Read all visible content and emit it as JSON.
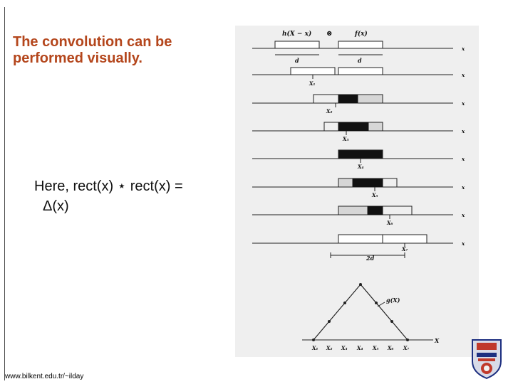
{
  "slide": {
    "title_lines": [
      "The convolution can be",
      "performed visually."
    ],
    "equation_line1": "Here, rect(x) ⋆ rect(x) =",
    "equation_line2": "Δ(x)",
    "footer_url": "www.bilkent.edu.tr/~ilday"
  },
  "figure": {
    "header_h": "h(X − x)",
    "header_op": "⊗",
    "header_f": "f(x)",
    "axis_label": "x",
    "axis_label_bottom": "X",
    "width_label": "d",
    "overlap_width_label": "2d",
    "result_label": "g(X)",
    "shift_labels": [
      "X₁",
      "X₂",
      "X₃",
      "X₄",
      "X₅",
      "X₆",
      "X₇"
    ],
    "bottom_tick_labels": [
      "X₁",
      "X₂",
      "X₃",
      "X₄",
      "X₅",
      "X₆",
      "X₇"
    ]
  },
  "colors": {
    "title": "#b4461c",
    "figure_bg": "#efefef",
    "overlap": "#111111"
  },
  "icons": {
    "logo": "university-crest-icon"
  }
}
